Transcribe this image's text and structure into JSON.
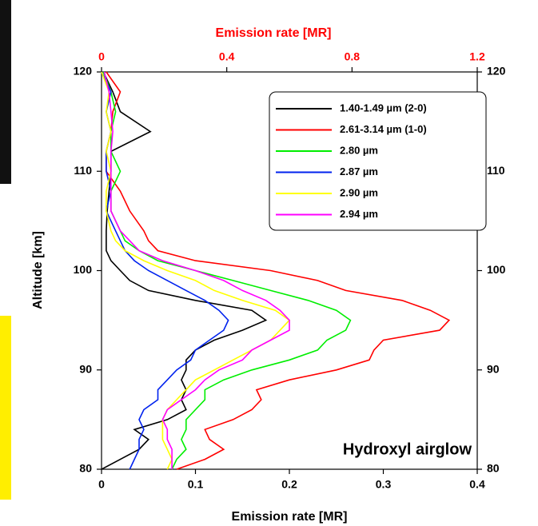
{
  "chart_data": {
    "type": "line",
    "x_label": "Emission rate [MR]",
    "x2_label": "Emission rate [MR]",
    "y_label": "Altitude [km]",
    "annotation": "Hydroxyl airglow",
    "xlim": [
      0,
      0.4
    ],
    "xticks": [
      0,
      0.1,
      0.2,
      0.3,
      0.4
    ],
    "x2lim": [
      0,
      1.2
    ],
    "x2ticks": [
      0,
      0.4,
      0.8,
      1.2
    ],
    "x2_color": "#ff0000",
    "ylim": [
      80,
      120
    ],
    "yticks": [
      80,
      90,
      100,
      110,
      120
    ],
    "y": [
      80,
      81,
      82,
      83,
      84,
      85,
      86,
      87,
      88,
      89,
      90,
      91,
      92,
      93,
      94,
      95,
      96,
      97,
      98,
      99,
      100,
      101,
      102,
      103,
      104,
      106,
      108,
      110,
      112,
      114,
      116,
      118,
      120
    ],
    "series": [
      {
        "name": "1.40-1.49  µm (2-0)",
        "color": "#000000",
        "values": [
          0,
          0.02,
          0.04,
          0.05,
          0.035,
          0.07,
          0.09,
          0.085,
          0.09,
          0.085,
          0.09,
          0.09,
          0.1,
          0.12,
          0.15,
          0.175,
          0.16,
          0.1,
          0.05,
          0.03,
          0.02,
          0.01,
          0.005,
          0.005,
          0.005,
          0.006,
          0.008,
          0.01,
          0.01,
          0.052,
          0.02,
          0.012,
          0.002
        ]
      },
      {
        "name": "2.61-3.14  µm (1-0)",
        "color": "#ff0000",
        "axis": "x2",
        "values": [
          0.24,
          0.33,
          0.39,
          0.345,
          0.33,
          0.42,
          0.48,
          0.51,
          0.495,
          0.6,
          0.75,
          0.855,
          0.87,
          0.9,
          1.08,
          1.11,
          1.05,
          0.96,
          0.78,
          0.69,
          0.54,
          0.3,
          0.18,
          0.15,
          0.135,
          0.09,
          0.06,
          0.015,
          0.015,
          0.03,
          0.036,
          0.06,
          0.015
        ]
      },
      {
        "name": "2.80 µm",
        "color": "#00ee00",
        "values": [
          0.075,
          0.08,
          0.09,
          0.085,
          0.09,
          0.09,
          0.1,
          0.11,
          0.11,
          0.13,
          0.16,
          0.2,
          0.23,
          0.24,
          0.26,
          0.265,
          0.25,
          0.22,
          0.18,
          0.14,
          0.1,
          0.06,
          0.04,
          0.025,
          0.02,
          0.01,
          0.01,
          0.02,
          0.01,
          0.01,
          0.015,
          0.01,
          0.002
        ]
      },
      {
        "name": "2.87 µm",
        "color": "#0022ee",
        "values": [
          0.03,
          0.035,
          0.04,
          0.04,
          0.045,
          0.04,
          0.045,
          0.06,
          0.06,
          0.07,
          0.08,
          0.095,
          0.1,
          0.115,
          0.13,
          0.135,
          0.125,
          0.11,
          0.09,
          0.07,
          0.05,
          0.035,
          0.025,
          0.02,
          0.015,
          0.005,
          0.01,
          0.005,
          0.005,
          0.01,
          0.005,
          0.01,
          0
        ]
      },
      {
        "name": "2.90 µm",
        "color": "#ffff00",
        "values": [
          0.07,
          0.075,
          0.07,
          0.065,
          0.065,
          0.065,
          0.07,
          0.08,
          0.09,
          0.1,
          0.12,
          0.14,
          0.16,
          0.18,
          0.19,
          0.2,
          0.185,
          0.15,
          0.12,
          0.1,
          0.07,
          0.045,
          0.025,
          0.015,
          0.01,
          0.005,
          0.005,
          0.01,
          0.005,
          0.01,
          0.005,
          0.008,
          0
        ]
      },
      {
        "name": "2.94 µm",
        "color": "#ff00ff",
        "values": [
          0.075,
          0.075,
          0.075,
          0.07,
          0.07,
          0.065,
          0.07,
          0.085,
          0.1,
          0.11,
          0.125,
          0.15,
          0.16,
          0.18,
          0.2,
          0.2,
          0.19,
          0.175,
          0.15,
          0.13,
          0.1,
          0.065,
          0.04,
          0.03,
          0.02,
          0.01,
          0.01,
          0.01,
          0.01,
          0.012,
          0.01,
          0.008,
          0.003
        ]
      }
    ]
  }
}
